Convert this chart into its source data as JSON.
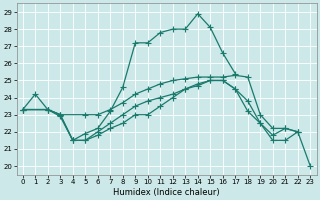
{
  "xlabel": "Humidex (Indice chaleur)",
  "bg_color": "#cce8e8",
  "grid_color": "#ffffff",
  "line_color": "#1a7a6e",
  "xlim": [
    -0.5,
    23.5
  ],
  "ylim": [
    19.5,
    29.5
  ],
  "yticks": [
    20,
    21,
    22,
    23,
    24,
    25,
    26,
    27,
    28,
    29
  ],
  "xticks": [
    0,
    1,
    2,
    3,
    4,
    5,
    6,
    7,
    8,
    9,
    10,
    11,
    12,
    13,
    14,
    15,
    16,
    17,
    18,
    19,
    20,
    21,
    22,
    23
  ],
  "line1_x": [
    0,
    1,
    2,
    3,
    4,
    5,
    6,
    7,
    8,
    9,
    10,
    11,
    12,
    13,
    14,
    15,
    16,
    17
  ],
  "line1_y": [
    23.3,
    24.2,
    23.3,
    23.0,
    21.5,
    21.9,
    22.2,
    23.2,
    24.6,
    27.2,
    27.2,
    27.8,
    28.0,
    28.0,
    28.9,
    28.1,
    26.6,
    25.4
  ],
  "line2_x": [
    0,
    2,
    3,
    5,
    6,
    7,
    8,
    9,
    10,
    11,
    12,
    13,
    14,
    15,
    16,
    17,
    18,
    19,
    20,
    21,
    22
  ],
  "line2_y": [
    23.3,
    23.3,
    23.0,
    23.0,
    23.0,
    23.3,
    23.7,
    24.2,
    24.5,
    24.8,
    25.0,
    25.1,
    25.2,
    25.2,
    25.2,
    25.3,
    25.2,
    23.0,
    22.2,
    22.2,
    22.0
  ],
  "line3_x": [
    0,
    2,
    3,
    4,
    5,
    6,
    7,
    8,
    9,
    10,
    11,
    12,
    13,
    14,
    15,
    16,
    17,
    18,
    19,
    20,
    21,
    22
  ],
  "line3_y": [
    23.3,
    23.3,
    22.9,
    21.5,
    21.5,
    22.0,
    22.5,
    23.0,
    23.5,
    23.8,
    24.0,
    24.2,
    24.5,
    24.7,
    25.0,
    25.0,
    24.5,
    23.8,
    22.5,
    21.8,
    22.2,
    22.0
  ],
  "line4_x": [
    0,
    2,
    3,
    4,
    5,
    6,
    7,
    8,
    9,
    10,
    11,
    12,
    13,
    14,
    15,
    16,
    17,
    18,
    19,
    20,
    21,
    22,
    23
  ],
  "line4_y": [
    23.3,
    23.3,
    23.0,
    21.5,
    21.5,
    21.8,
    22.2,
    22.5,
    23.0,
    23.0,
    23.5,
    24.0,
    24.5,
    24.8,
    25.0,
    25.0,
    24.5,
    23.2,
    22.5,
    21.5,
    21.5,
    22.0,
    20.0
  ]
}
